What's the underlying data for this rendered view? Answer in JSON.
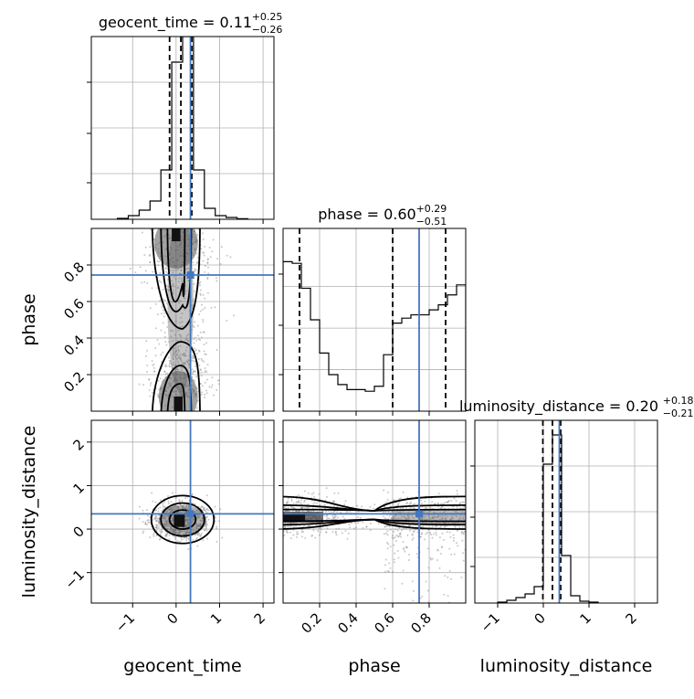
{
  "chart_data": {
    "type": "corner",
    "parameters": [
      "geocent_time",
      "phase",
      "luminosity_distance"
    ],
    "truths": {
      "geocent_time": 0.33,
      "phase": 0.745,
      "luminosity_distance": 0.35
    },
    "colors": {
      "truth": "#4477bb",
      "lines": "#000000",
      "grid": "#b0b0b0"
    },
    "diagonal": [
      {
        "parameter": "geocent_time",
        "title_main": "geocent_time = 0.11",
        "title_sup": "+0.25",
        "title_sub": "−0.26",
        "median": 0.11,
        "quantiles": [
          -0.15,
          0.11,
          0.36
        ],
        "xlim": [
          -1.95,
          2.25
        ],
        "ylim": [
          0,
          1
        ],
        "xticks": [
          -1,
          0,
          1,
          2
        ],
        "tick_labels": [
          "−1",
          "0",
          "1",
          "2"
        ],
        "bin_edges": [
          -1.35,
          -1.1,
          -0.85,
          -0.6,
          -0.35,
          -0.1,
          0.15,
          0.4,
          0.65,
          0.9,
          1.15,
          1.4,
          1.65
        ],
        "counts": [
          0.005,
          0.02,
          0.05,
          0.1,
          0.27,
          0.86,
          1.0,
          0.27,
          0.06,
          0.02,
          0.01,
          0.003
        ]
      },
      {
        "parameter": "phase",
        "title_main": "phase = 0.60",
        "title_sup": "+0.29",
        "title_sub": "−0.51",
        "median": 0.6,
        "quantiles": [
          0.09,
          0.6,
          0.89
        ],
        "xlim": [
          0,
          1
        ],
        "ylim": [
          0,
          1.1
        ],
        "xticks": [
          0.2,
          0.4,
          0.6,
          0.8
        ],
        "tick_labels": [
          "0.2",
          "0.4",
          "0.6",
          "0.8"
        ],
        "bin_edges": [
          0,
          0.05,
          0.1,
          0.15,
          0.2,
          0.25,
          0.3,
          0.35,
          0.4,
          0.45,
          0.5,
          0.55,
          0.6,
          0.65,
          0.7,
          0.75,
          0.8,
          0.85,
          0.9,
          0.95,
          1.0
        ],
        "counts": [
          0.9,
          0.89,
          0.74,
          0.55,
          0.35,
          0.22,
          0.16,
          0.13,
          0.13,
          0.12,
          0.15,
          0.34,
          0.53,
          0.56,
          0.58,
          0.58,
          0.61,
          0.64,
          0.7,
          0.76
        ]
      },
      {
        "parameter": "luminosity_distance",
        "title_main": "luminosity_distance = 0.20",
        "title_sup": "+0.18",
        "title_sub": "−0.21",
        "median": 0.2,
        "quantiles": [
          -0.01,
          0.2,
          0.38
        ],
        "xlim": [
          -1.5,
          2.5
        ],
        "ylim": [
          0,
          1
        ],
        "xticks": [
          -1,
          0,
          1,
          2
        ],
        "tick_labels": [
          "−1",
          "0",
          "1",
          "2"
        ],
        "bin_edges": [
          -1.0,
          -0.8,
          -0.6,
          -0.4,
          -0.2,
          0.0,
          0.2,
          0.4,
          0.6,
          0.8,
          1.0,
          1.2
        ],
        "counts": [
          0.005,
          0.015,
          0.03,
          0.05,
          0.09,
          0.76,
          0.92,
          0.26,
          0.04,
          0.01,
          0.005
        ]
      }
    ],
    "off_diagonal": [
      {
        "x": "geocent_time",
        "y": "phase",
        "xlim": [
          -1.95,
          2.25
        ],
        "ylim": [
          0,
          1
        ],
        "xticks": [
          -1,
          0,
          1,
          2
        ],
        "yticks": [
          0.2,
          0.4,
          0.6,
          0.8
        ],
        "ytick_labels": [
          "0.2",
          "0.4",
          "0.6",
          "0.8"
        ]
      },
      {
        "x": "geocent_time",
        "y": "luminosity_distance",
        "xlim": [
          -1.95,
          2.25
        ],
        "ylim": [
          -1.7,
          2.5
        ],
        "xticks": [
          -1,
          0,
          1,
          2
        ],
        "xtick_labels": [
          "−1",
          "0",
          "1",
          "2"
        ],
        "yticks": [
          -1,
          0,
          1,
          2
        ],
        "ytick_labels": [
          "−1",
          "0",
          "1",
          "2"
        ]
      },
      {
        "x": "phase",
        "y": "luminosity_distance",
        "xlim": [
          0,
          1
        ],
        "ylim": [
          -1.7,
          2.5
        ],
        "xticks": [
          0.2,
          0.4,
          0.6,
          0.8
        ],
        "xtick_labels": [
          "0.2",
          "0.4",
          "0.6",
          "0.8"
        ],
        "yticks": [
          -1,
          0,
          1,
          2
        ]
      }
    ],
    "axis_labels": {
      "x": [
        "geocent_time",
        "phase",
        "luminosity_distance"
      ],
      "y": [
        "phase",
        "luminosity_distance"
      ]
    }
  }
}
